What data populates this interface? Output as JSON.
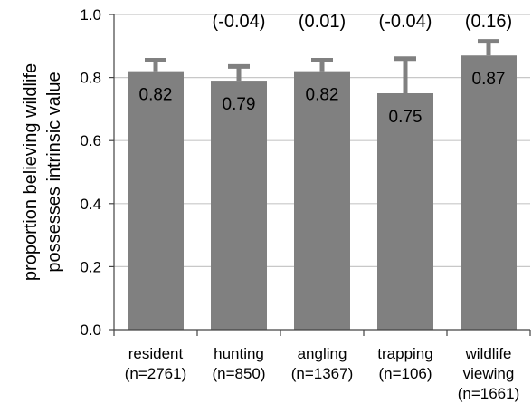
{
  "chart_data": {
    "type": "bar",
    "title": "",
    "ylabel_lines": [
      "proportion believing wildlife",
      "possesses intrinsic value"
    ],
    "xlabel": "",
    "ylim": [
      0,
      1.0
    ],
    "y_ticks": [
      "0.0",
      "0.2",
      "0.4",
      "0.6",
      "0.8",
      "1.0"
    ],
    "grid": true,
    "bar_color": "#808080",
    "grid_color": "#c8c8c8",
    "categories": [
      {
        "name_lines": [
          "resident",
          "(n=2761)"
        ],
        "value": 0.82,
        "value_label": "0.82",
        "error_upper": 0.855,
        "diff_label": ""
      },
      {
        "name_lines": [
          "hunting",
          "(n=850)"
        ],
        "value": 0.79,
        "value_label": "0.79",
        "error_upper": 0.835,
        "diff_label": "(-0.04)"
      },
      {
        "name_lines": [
          "angling",
          "(n=1367)"
        ],
        "value": 0.82,
        "value_label": "0.82",
        "error_upper": 0.855,
        "diff_label": "(0.01)"
      },
      {
        "name_lines": [
          "trapping",
          "(n=106)"
        ],
        "value": 0.75,
        "value_label": "0.75",
        "error_upper": 0.86,
        "diff_label": "(-0.04)"
      },
      {
        "name_lines": [
          "wildlife",
          "viewing",
          "(n=1661)"
        ],
        "value": 0.87,
        "value_label": "0.87",
        "error_upper": 0.915,
        "diff_label": "(0.16)"
      }
    ]
  }
}
